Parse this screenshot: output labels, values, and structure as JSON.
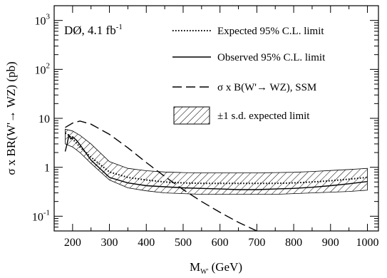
{
  "chart_data": {
    "type": "line",
    "experiment_label": "DØ, 4.1 fb",
    "experiment_label_sup": "-1",
    "xlabel_main": "M",
    "xlabel_sub": "W'",
    "xlabel_unit": " (GeV)",
    "ylabel": "σ x BR(W'→ WZ) (pb)",
    "xlim": [
      150,
      1030
    ],
    "ylim": [
      0.05,
      2000
    ],
    "yscale": "log",
    "x_ticks": [
      200,
      300,
      400,
      500,
      600,
      700,
      800,
      900,
      1000
    ],
    "x_tick_labels": [
      "200",
      "300",
      "400",
      "500",
      "600",
      "700",
      "800",
      "900",
      "1000"
    ],
    "y_ticks": [
      {
        "value": 0.1,
        "base": "10",
        "exp": "-1",
        "plain": ""
      },
      {
        "value": 1,
        "base": "",
        "exp": "",
        "plain": "1"
      },
      {
        "value": 10,
        "base": "",
        "exp": "",
        "plain": "10"
      },
      {
        "value": 100,
        "base": "10",
        "exp": "2",
        "plain": ""
      },
      {
        "value": 1000,
        "base": "10",
        "exp": "3",
        "plain": ""
      }
    ],
    "legend": [
      {
        "label": "Expected 95% C.L. limit",
        "style": "dotted"
      },
      {
        "label": "Observed 95% C.L. limit",
        "style": "solid"
      },
      {
        "label": "σ x B(W'→ WZ), SSM",
        "style": "dashed"
      },
      {
        "label": "±1 s.d. expected limit",
        "style": "hatched"
      }
    ],
    "series": [
      {
        "style": "dotted",
        "x": [
          180,
          190,
          200,
          220,
          250,
          300,
          350,
          400,
          450,
          500,
          550,
          600,
          650,
          700,
          750,
          800,
          850,
          900,
          950,
          1000
        ],
        "y": [
          5.0,
          4.5,
          3.8,
          2.6,
          1.6,
          0.8,
          0.62,
          0.55,
          0.5,
          0.48,
          0.47,
          0.47,
          0.47,
          0.47,
          0.47,
          0.48,
          0.5,
          0.53,
          0.57,
          0.62
        ]
      },
      {
        "style": "solid",
        "x": [
          180,
          185,
          190,
          195,
          200,
          210,
          220,
          250,
          300,
          350,
          400,
          450,
          500,
          550,
          600,
          650,
          700,
          750,
          800,
          850,
          900,
          950,
          1000
        ],
        "y": [
          2.1,
          3.0,
          4.5,
          3.8,
          4.2,
          3.6,
          2.9,
          1.4,
          0.62,
          0.48,
          0.42,
          0.4,
          0.38,
          0.37,
          0.36,
          0.35,
          0.35,
          0.36,
          0.37,
          0.39,
          0.42,
          0.46,
          0.51
        ]
      },
      {
        "style": "dashed",
        "x": [
          180,
          200,
          220,
          250,
          300,
          350,
          400,
          450,
          500,
          550,
          600,
          650,
          700
        ],
        "y": [
          6.5,
          8.0,
          8.8,
          7.6,
          4.7,
          2.5,
          1.25,
          0.65,
          0.35,
          0.2,
          0.12,
          0.075,
          0.05
        ]
      }
    ],
    "band": {
      "x": [
        180,
        200,
        220,
        250,
        300,
        350,
        400,
        450,
        500,
        550,
        600,
        650,
        700,
        750,
        800,
        850,
        900,
        950,
        1000
      ],
      "upper": [
        6.0,
        5.5,
        4.5,
        3.0,
        1.3,
        0.95,
        0.85,
        0.8,
        0.78,
        0.77,
        0.77,
        0.77,
        0.77,
        0.78,
        0.79,
        0.82,
        0.86,
        0.9,
        0.95
      ],
      "lower": [
        3.0,
        2.6,
        2.0,
        1.2,
        0.55,
        0.38,
        0.33,
        0.3,
        0.29,
        0.28,
        0.28,
        0.28,
        0.28,
        0.28,
        0.29,
        0.3,
        0.31,
        0.32,
        0.34
      ]
    }
  }
}
